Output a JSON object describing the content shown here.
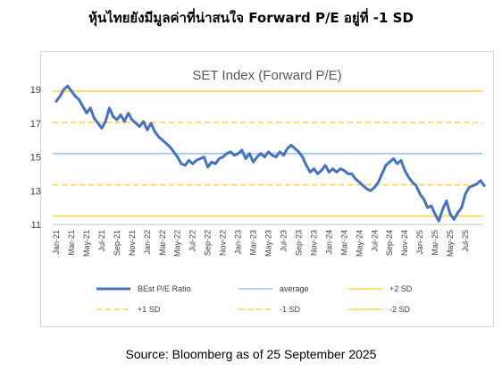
{
  "header": {
    "title": "หุ้นไทยยังมีมูลค่าที่น่าสนใจ Forward P/E อยู่ที่ -1 SD"
  },
  "footer": {
    "source": "Source: Bloomberg as of 25 September 2025"
  },
  "colors": {
    "series": "#4472c4",
    "average": "#9dc3e6",
    "sd": "#ffd447",
    "grid_text": "#404040"
  },
  "chart_data": {
    "type": "line",
    "title": "SET Index (Forward P/E)",
    "ylim": [
      11,
      19
    ],
    "yticks": [
      11,
      13,
      15,
      17,
      19
    ],
    "xticks": [
      "Jan-21",
      "Mar-21",
      "May-21",
      "Jul-21",
      "Sep-21",
      "Nov-21",
      "Jan-22",
      "Mar-22",
      "May-22",
      "Jul-22",
      "Sep-22",
      "Nov-22",
      "Jan-23",
      "Mar-23",
      "May-23",
      "Jul-23",
      "Sep-23",
      "Nov-23",
      "Jan-24",
      "Mar-24",
      "May-24",
      "Jul-24",
      "Sep-24",
      "Nov-24",
      "Jan-25",
      "Mar-25",
      "May-25",
      "Jul-25"
    ],
    "reference_lines": [
      {
        "name": "average",
        "value": 15.2,
        "style": "solid",
        "color": "#9dc3e6"
      },
      {
        "name": "+2 SD",
        "value": 18.9,
        "style": "solid",
        "color": "#ffd447"
      },
      {
        "name": "+1 SD",
        "value": 17.05,
        "style": "dashed",
        "color": "#ffd447"
      },
      {
        "name": "-1 SD",
        "value": 13.35,
        "style": "dashed",
        "color": "#ffd447"
      },
      {
        "name": "-2 SD",
        "value": 11.5,
        "style": "solid",
        "color": "#ffd447"
      }
    ],
    "series": [
      {
        "name": "BEst P/E Ratio",
        "color": "#4472c4",
        "points": [
          [
            "Jan-21",
            18.3
          ],
          [
            "Jan-21",
            18.6
          ],
          [
            "Feb-21",
            19.0
          ],
          [
            "Feb-21",
            19.2
          ],
          [
            "Mar-21",
            18.9
          ],
          [
            "Mar-21",
            18.6
          ],
          [
            "Apr-21",
            18.4
          ],
          [
            "Apr-21",
            18.0
          ],
          [
            "May-21",
            17.6
          ],
          [
            "May-21",
            17.9
          ],
          [
            "Jun-21",
            17.3
          ],
          [
            "Jun-21",
            17.0
          ],
          [
            "Jul-21",
            16.7
          ],
          [
            "Jul-21",
            17.1
          ],
          [
            "Aug-21",
            17.9
          ],
          [
            "Aug-21",
            17.4
          ],
          [
            "Sep-21",
            17.2
          ],
          [
            "Sep-21",
            17.5
          ],
          [
            "Oct-21",
            17.1
          ],
          [
            "Oct-21",
            17.6
          ],
          [
            "Nov-21",
            17.2
          ],
          [
            "Nov-21",
            17.0
          ],
          [
            "Dec-21",
            16.8
          ],
          [
            "Dec-21",
            17.1
          ],
          [
            "Jan-22",
            16.6
          ],
          [
            "Jan-22",
            17.0
          ],
          [
            "Feb-22",
            16.5
          ],
          [
            "Feb-22",
            16.2
          ],
          [
            "Mar-22",
            16.0
          ],
          [
            "Mar-22",
            15.8
          ],
          [
            "Apr-22",
            15.6
          ],
          [
            "Apr-22",
            15.3
          ],
          [
            "May-22",
            15.0
          ],
          [
            "May-22",
            14.6
          ],
          [
            "Jun-22",
            14.5
          ],
          [
            "Jun-22",
            14.8
          ],
          [
            "Jul-22",
            14.6
          ],
          [
            "Jul-22",
            14.8
          ],
          [
            "Aug-22",
            14.9
          ],
          [
            "Aug-22",
            15.0
          ],
          [
            "Sep-22",
            14.4
          ],
          [
            "Sep-22",
            14.7
          ],
          [
            "Oct-22",
            14.6
          ],
          [
            "Oct-22",
            14.9
          ],
          [
            "Nov-22",
            15.0
          ],
          [
            "Nov-22",
            15.2
          ],
          [
            "Dec-22",
            15.3
          ],
          [
            "Dec-22",
            15.1
          ],
          [
            "Jan-23",
            15.2
          ],
          [
            "Jan-23",
            15.4
          ],
          [
            "Feb-23",
            14.9
          ],
          [
            "Feb-23",
            15.2
          ],
          [
            "Mar-23",
            14.7
          ],
          [
            "Mar-23",
            15.0
          ],
          [
            "Apr-23",
            15.2
          ],
          [
            "Apr-23",
            15.0
          ],
          [
            "May-23",
            15.3
          ],
          [
            "May-23",
            15.1
          ],
          [
            "Jun-23",
            15.0
          ],
          [
            "Jun-23",
            15.3
          ],
          [
            "Jul-23",
            15.1
          ],
          [
            "Jul-23",
            15.5
          ],
          [
            "Aug-23",
            15.7
          ],
          [
            "Aug-23",
            15.5
          ],
          [
            "Sep-23",
            15.3
          ],
          [
            "Sep-23",
            15.0
          ],
          [
            "Oct-23",
            14.5
          ],
          [
            "Oct-23",
            14.1
          ],
          [
            "Nov-23",
            14.3
          ],
          [
            "Nov-23",
            14.0
          ],
          [
            "Dec-23",
            14.2
          ],
          [
            "Dec-23",
            14.5
          ],
          [
            "Jan-24",
            14.1
          ],
          [
            "Jan-24",
            14.3
          ],
          [
            "Feb-24",
            14.1
          ],
          [
            "Feb-24",
            14.3
          ],
          [
            "Mar-24",
            14.2
          ],
          [
            "Mar-24",
            14.0
          ],
          [
            "Apr-24",
            14.0
          ],
          [
            "Apr-24",
            13.7
          ],
          [
            "May-24",
            13.5
          ],
          [
            "May-24",
            13.3
          ],
          [
            "Jun-24",
            13.1
          ],
          [
            "Jun-24",
            13.0
          ],
          [
            "Jul-24",
            13.2
          ],
          [
            "Jul-24",
            13.5
          ],
          [
            "Aug-24",
            14.0
          ],
          [
            "Aug-24",
            14.5
          ],
          [
            "Sep-24",
            14.7
          ],
          [
            "Sep-24",
            14.9
          ],
          [
            "Oct-24",
            14.6
          ],
          [
            "Oct-24",
            14.8
          ],
          [
            "Nov-24",
            14.2
          ],
          [
            "Nov-24",
            13.8
          ],
          [
            "Dec-24",
            13.5
          ],
          [
            "Dec-24",
            13.3
          ],
          [
            "Jan-25",
            12.8
          ],
          [
            "Jan-25",
            12.5
          ],
          [
            "Feb-25",
            12.0
          ],
          [
            "Feb-25",
            12.1
          ],
          [
            "Mar-25",
            11.6
          ],
          [
            "Mar-25",
            11.2
          ],
          [
            "Apr-25",
            11.9
          ],
          [
            "Apr-25",
            12.4
          ],
          [
            "May-25",
            11.6
          ],
          [
            "May-25",
            11.3
          ],
          [
            "Jun-25",
            11.7
          ],
          [
            "Jun-25",
            12.0
          ],
          [
            "Jul-25",
            12.8
          ],
          [
            "Jul-25",
            13.2
          ],
          [
            "Aug-25",
            13.3
          ],
          [
            "Aug-25",
            13.4
          ],
          [
            "Sep-25",
            13.6
          ],
          [
            "Sep-25",
            13.3
          ]
        ]
      }
    ],
    "legend": {
      "placement": "bottom",
      "items": [
        {
          "label": "BEst P/E Ratio",
          "style": "solid-thick",
          "color": "#4472c4"
        },
        {
          "label": "average",
          "style": "solid",
          "color": "#9dc3e6"
        },
        {
          "label": "+2 SD",
          "style": "solid",
          "color": "#ffd447"
        },
        {
          "label": "+1 SD",
          "style": "dashed",
          "color": "#ffd447"
        },
        {
          "label": "-1 SD",
          "style": "dashed",
          "color": "#ffd447"
        },
        {
          "label": "-2 SD",
          "style": "solid",
          "color": "#ffd447"
        }
      ]
    },
    "grid": false
  }
}
